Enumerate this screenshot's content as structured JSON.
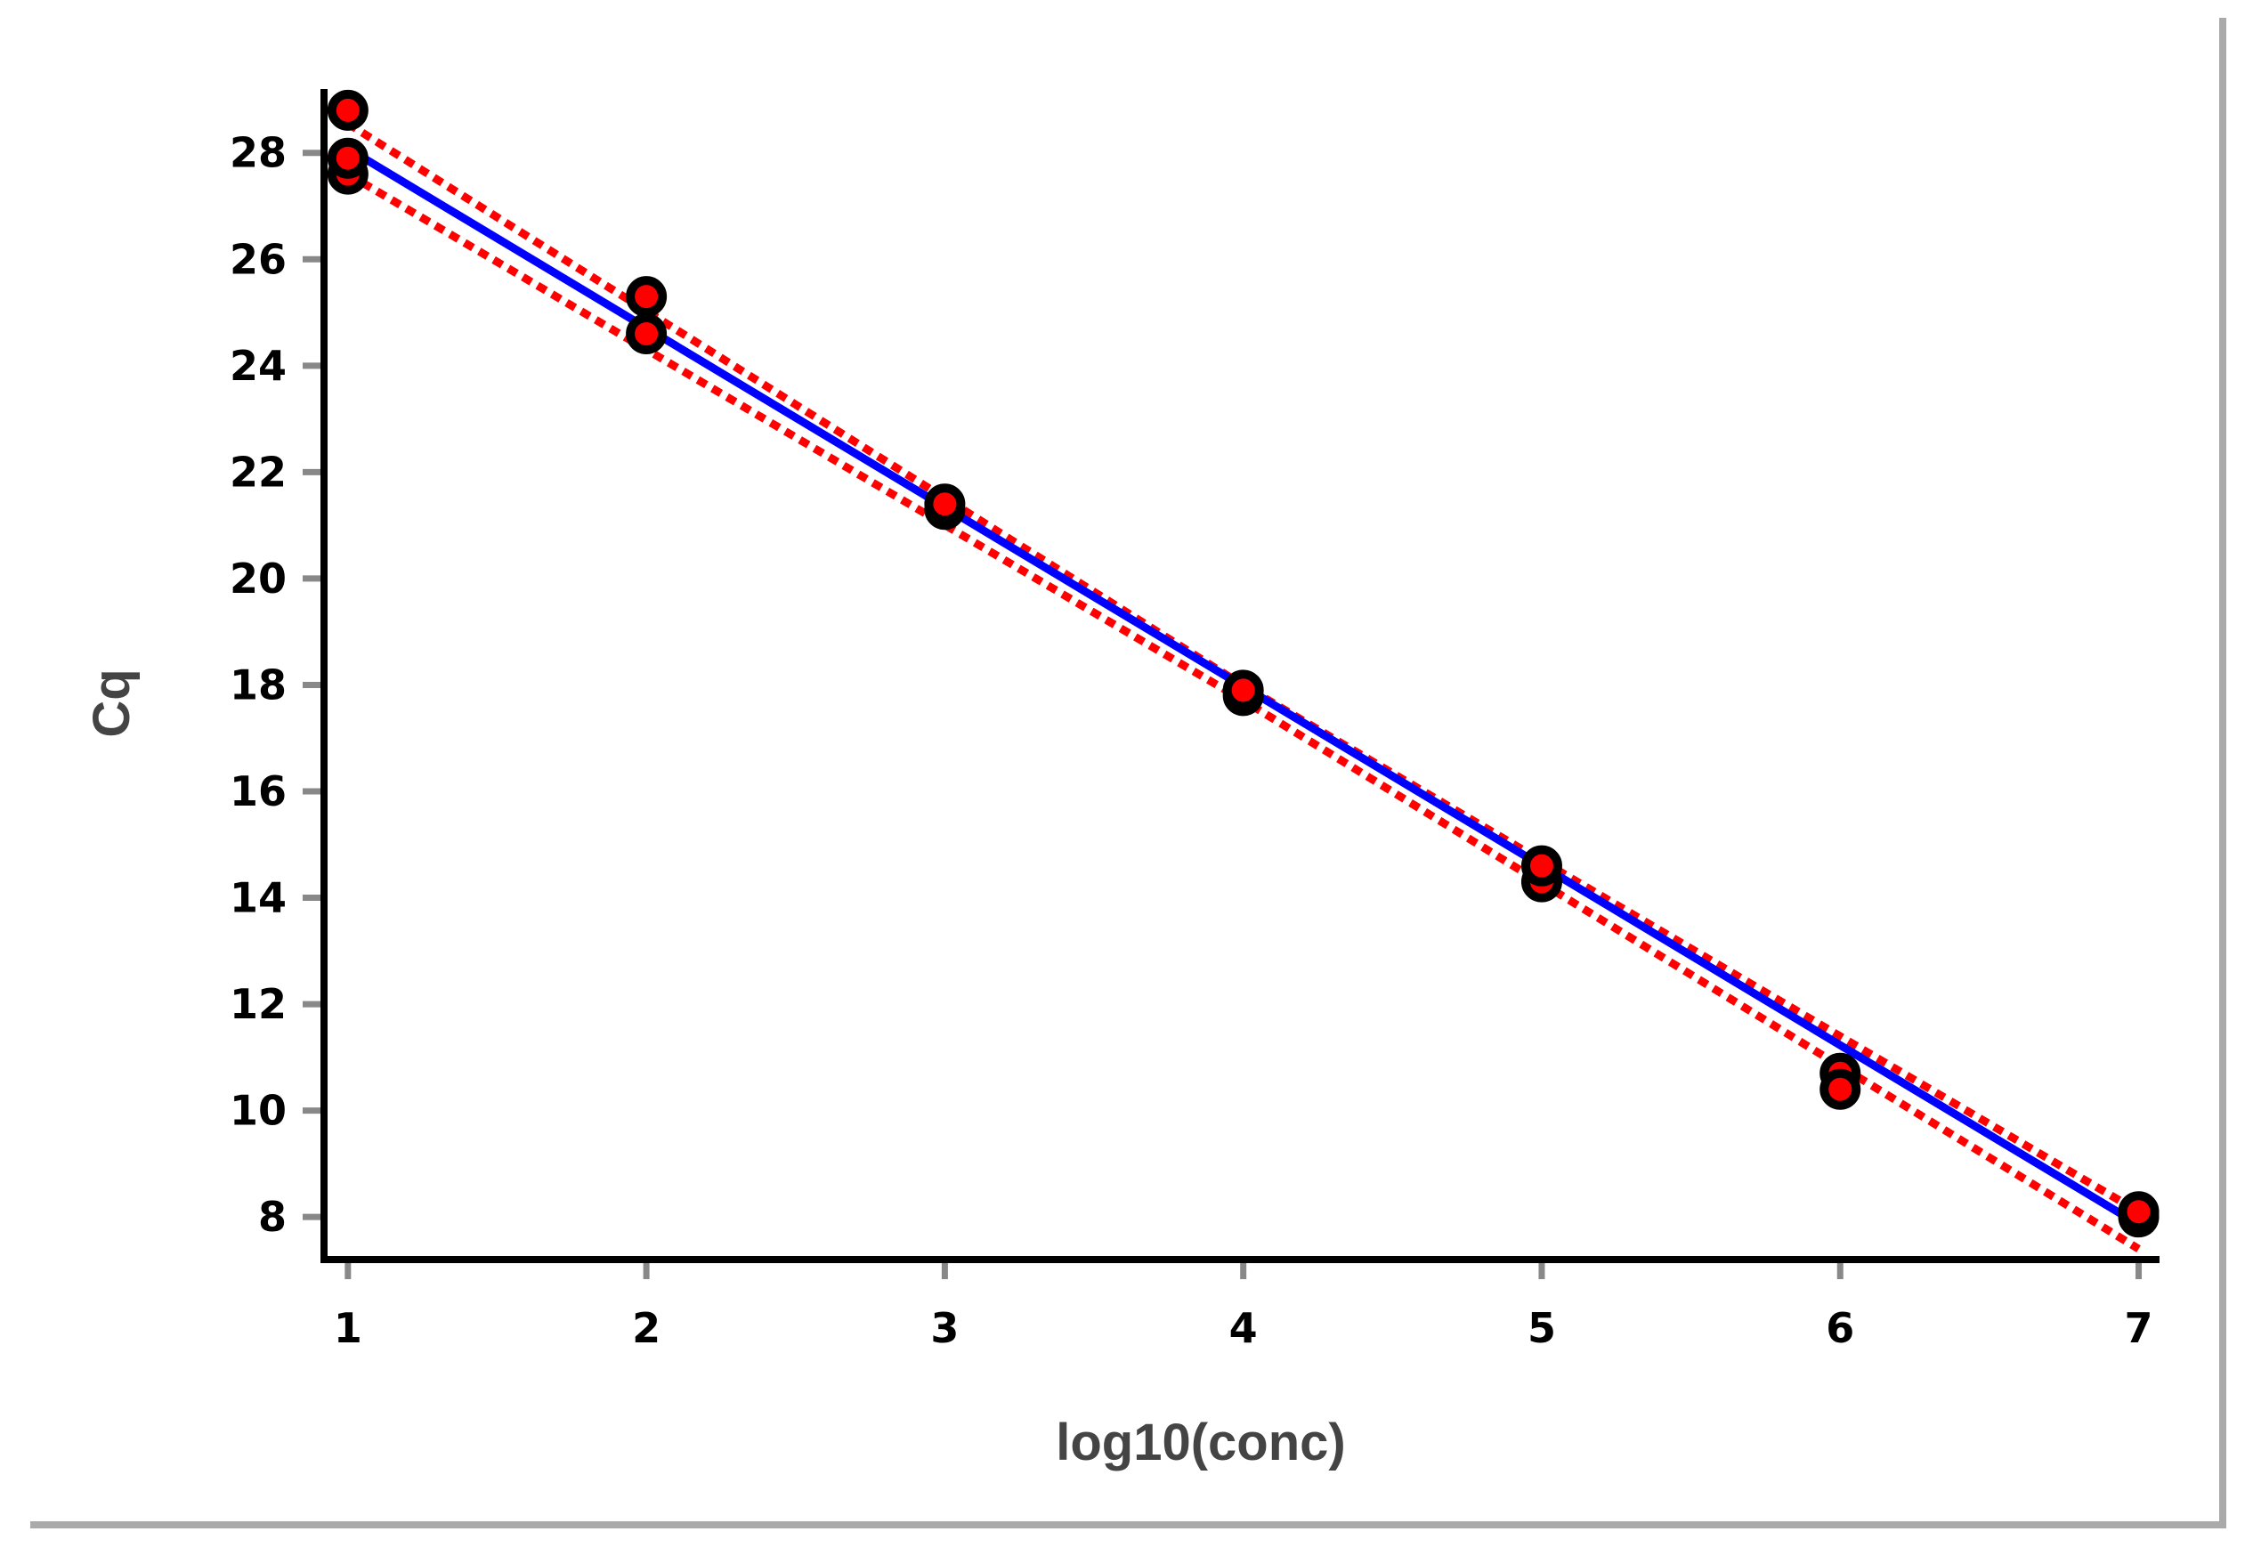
{
  "chart_data": {
    "type": "scatter",
    "xlabel": "log10(conc)",
    "ylabel": "Cq",
    "xlim": [
      0.92,
      7.07
    ],
    "ylim": [
      7.2,
      29.2
    ],
    "xticks": [
      1,
      2,
      3,
      4,
      5,
      6,
      7
    ],
    "yticks": [
      8,
      10,
      12,
      14,
      16,
      18,
      20,
      22,
      24,
      26,
      28
    ],
    "grid": false,
    "legend": "none",
    "colors": {
      "points_fill": "#ff0000",
      "points_outline": "#000000",
      "fit_line": "#0000ff",
      "confidence_band": "#ff0000",
      "axis": "#000000",
      "tick_mark": "#888888",
      "frame_shadow": "#aaaaaa"
    },
    "points": {
      "x": [
        1,
        1,
        1,
        2,
        2,
        3,
        3,
        4,
        4,
        5,
        5,
        6,
        6,
        7,
        7
      ],
      "y": [
        28.8,
        27.6,
        27.9,
        25.3,
        24.6,
        21.3,
        21.4,
        17.8,
        17.9,
        14.3,
        14.6,
        10.7,
        10.4,
        8.0,
        8.1
      ]
    },
    "fit": {
      "slope": -3.37,
      "intercept": 31.45,
      "x": [
        1,
        7
      ]
    },
    "confidence_band": {
      "upper": {
        "x": [
          1,
          4,
          7
        ],
        "y": [
          28.55,
          17.99,
          8.1
        ]
      },
      "lower": {
        "x": [
          1,
          4,
          7
        ],
        "y": [
          27.6,
          17.71,
          7.4
        ]
      }
    }
  }
}
